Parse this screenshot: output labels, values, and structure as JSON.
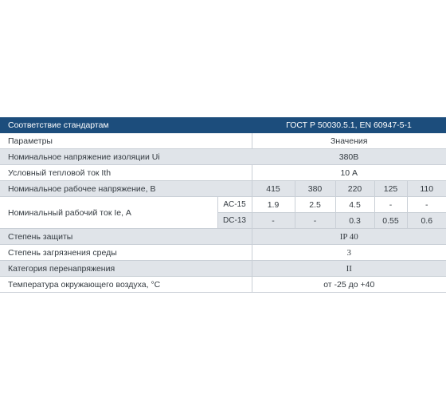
{
  "table": {
    "header": {
      "label": "Соответствие стандартам",
      "value": "ГОСТ Р 50030.5.1, EN 60947-5-1"
    },
    "rows": {
      "params": {
        "label": "Параметры",
        "value": "Значения"
      },
      "insulation": {
        "label": "Номинальное напряжение изоляции  Ui",
        "value": "380В"
      },
      "thermal": {
        "label": "Условный тепловой ток  Ith",
        "value": "10 А"
      },
      "voltage": {
        "label": "Номинальное рабочее напряжение, В",
        "values": [
          "415",
          "380",
          "220",
          "125",
          "110"
        ]
      },
      "current": {
        "label": "Номинальный рабочий ток Ie, А",
        "ac": {
          "type": "AC-15",
          "values": [
            "1.9",
            "2.5",
            "4.5",
            "-",
            "-"
          ]
        },
        "dc": {
          "type": "DC-13",
          "values": [
            "-",
            "-",
            "0.3",
            "0.55",
            "0.6"
          ]
        }
      },
      "protection": {
        "label": "Степень защиты",
        "value": "IP 40"
      },
      "pollution": {
        "label": "Степень загрязнения среды",
        "value": "3"
      },
      "overvoltage": {
        "label": "Категория перенапряжения",
        "value": "II"
      },
      "temperature": {
        "label": "Температура окружающего воздуха, °С",
        "value": "от -25 до +40"
      }
    }
  }
}
